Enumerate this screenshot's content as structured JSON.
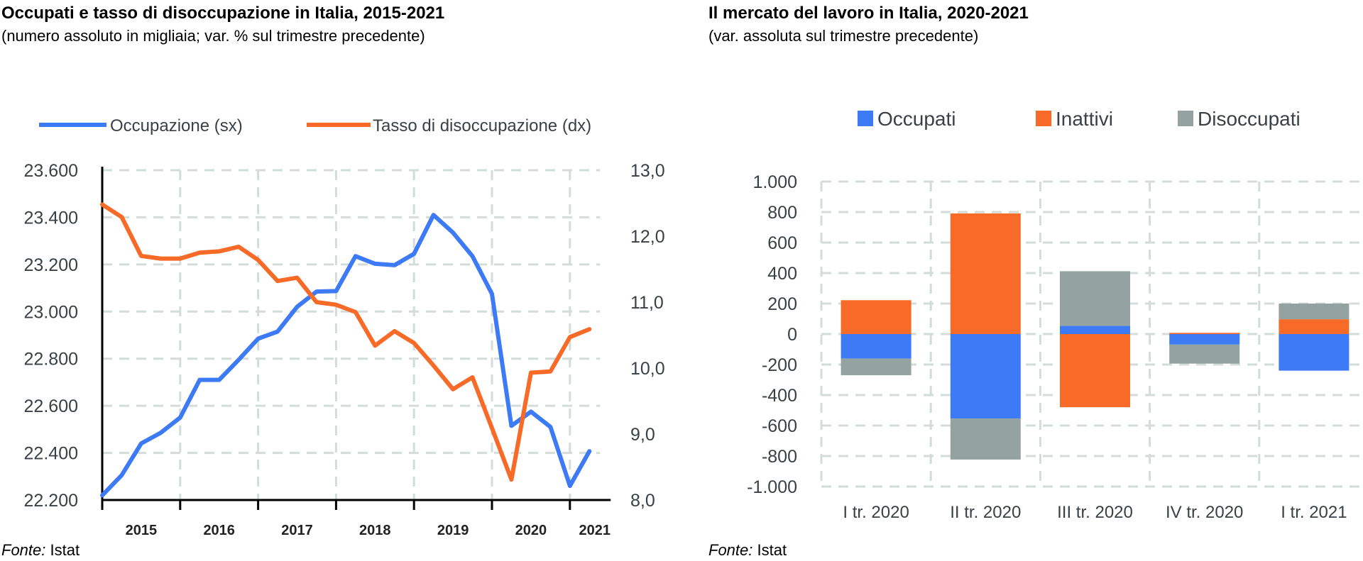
{
  "chart_data": [
    {
      "type": "line",
      "title": "Occupati e tasso di disoccupazione in Italia, 2015-2021",
      "subtitle": "(numero assoluto in migliaia; var. % sul trimestre precedente)",
      "source_label": "Fonte:",
      "source": " Istat",
      "x_tick_labels": [
        "2015",
        "2016",
        "2017",
        "2018",
        "2019",
        "2020",
        "2021"
      ],
      "y_left_ticks": [
        "23.600",
        "23.400",
        "23.200",
        "23.000",
        "22.800",
        "22.600",
        "22.400",
        "22.200"
      ],
      "y_left_range": [
        22200,
        23600
      ],
      "y_right_ticks": [
        "13,0",
        "12,0",
        "11,0",
        "10,0",
        "9,0",
        "8,0"
      ],
      "y_right_range": [
        8.0,
        13.0
      ],
      "legend_position": "top",
      "grid": true,
      "x_quarters": 26,
      "series": [
        {
          "name": "Occupazione (sx)",
          "axis": "left",
          "color": "#3d7af5",
          "values": [
            22220,
            22305,
            22440,
            22485,
            22550,
            22710,
            22710,
            22795,
            22885,
            22915,
            23020,
            23085,
            23087,
            23235,
            23203,
            23197,
            23245,
            23410,
            23335,
            23235,
            23075,
            22515,
            22575,
            22510,
            22260,
            22407
          ]
        },
        {
          "name": "Tasso di disoccupazione (dx)",
          "axis": "right",
          "color": "#f76a27",
          "values": [
            12.48,
            12.29,
            11.7,
            11.66,
            11.66,
            11.75,
            11.77,
            11.84,
            11.64,
            11.32,
            11.37,
            11.0,
            10.96,
            10.85,
            10.34,
            10.56,
            10.38,
            10.04,
            9.68,
            9.86,
            9.09,
            8.31,
            9.93,
            9.95,
            10.47,
            10.59
          ]
        }
      ]
    },
    {
      "type": "bar",
      "stacked": true,
      "title": "Il mercato del lavoro in Italia, 2020-2021",
      "subtitle": "(var. assoluta sul trimestre precedente)",
      "source_label": "Fonte:",
      "source": " Istat",
      "categories": [
        "I tr. 2020",
        "II tr. 2020",
        "III tr. 2020",
        "IV tr. 2020",
        "I tr. 2021"
      ],
      "y_ticks": [
        "1.000",
        "800",
        "600",
        "400",
        "200",
        "0",
        "-200",
        "-400",
        "-600",
        "-800",
        "-1.000"
      ],
      "ylim": [
        -1000,
        1000
      ],
      "legend_position": "top",
      "grid": true,
      "series": [
        {
          "name": "Occupati",
          "color": "#3d7af5",
          "values": [
            -161,
            -554,
            54,
            -69,
            -240
          ]
        },
        {
          "name": "Inattivi",
          "color": "#f76a27",
          "values": [
            222,
            791,
            -480,
            8,
            97
          ]
        },
        {
          "name": "Disoccupati",
          "color": "#95a3a0",
          "values": [
            -109,
            -269,
            358,
            -125,
            103
          ]
        }
      ]
    }
  ]
}
